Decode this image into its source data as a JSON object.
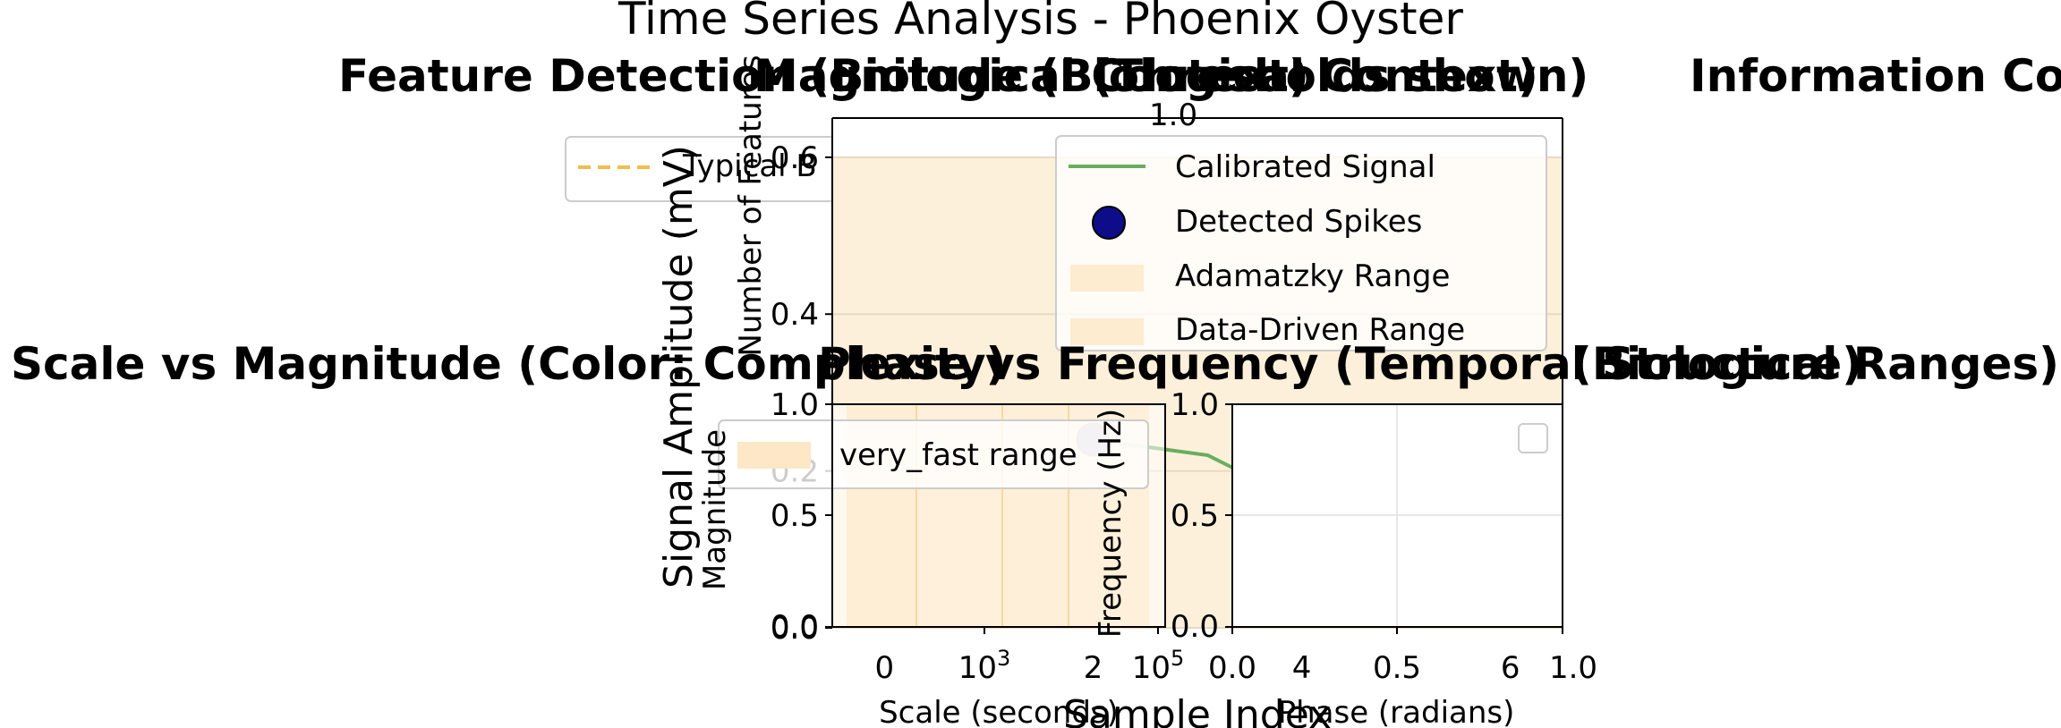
{
  "figure": {
    "suptitle": "Time Series Analysis - Phoenix Oyster"
  },
  "panels": {
    "feature_detection": {
      "title": "Feature Detection (Biological Context)",
      "legend": [
        "Typical B"
      ]
    },
    "magnitude": {
      "title": "Magnitude (Biological Context)",
      "ylabel": "Number of Features",
      "ytick": "1.0"
    },
    "histogram": {
      "title": "(Thresholds shown)",
      "ylabel": "Number of Features"
    },
    "main_signal": {
      "title": "Information Content)",
      "ylabel": "Signal Amplitude (mV)",
      "xlabel": "Sample Index"
    },
    "scale_vs_magnitude": {
      "title": "Scale vs Magnitude (Color: Complexity)",
      "ylabel": "Magnitude",
      "xlabel": "Scale (seconds)",
      "legend": [
        "very_fast range"
      ]
    },
    "phase_vs_frequency": {
      "title": "Phase vs Frequency (Temporal Structure)",
      "ylabel": "Frequency (Hz)",
      "xlabel": "Phase (radians)"
    },
    "biological_ranges": {
      "title": "(Biological Ranges)"
    }
  },
  "chart_data": [
    {
      "type": "line",
      "title": "Information Content)",
      "ylabel": "Signal Amplitude (mV)",
      "xlabel": "Sample Index",
      "yticks": [
        "0.0",
        "0.2",
        "0.4",
        "0.6"
      ],
      "ylim": [
        0.0,
        0.65
      ],
      "xticks": [
        "0",
        "2",
        "4",
        "6"
      ],
      "xlim": [
        -0.5,
        6.5
      ],
      "series": [
        {
          "name": "Calibrated Signal",
          "color": "#6aad5f",
          "x": [
            2.0,
            3.1,
            3.7
          ],
          "y": [
            0.24,
            0.22,
            0.18
          ]
        }
      ],
      "spikes": {
        "name": "Detected Spikes",
        "color": "#0d0d8a",
        "x": [
          2.0
        ],
        "y": [
          0.24
        ]
      },
      "ranges": [
        {
          "name": "Adamatzky Range",
          "color": "#fde7c6",
          "y": [
            0.0,
            0.6
          ]
        },
        {
          "name": "Data-Driven Range",
          "color": "#fde7c6",
          "y": [
            0.0,
            0.6
          ]
        }
      ],
      "legend_position": "upper right",
      "grid": true
    },
    {
      "type": "scatter",
      "title": "Scale vs Magnitude (Color: Complexity)",
      "ylabel": "Magnitude",
      "xlabel": "Scale (seconds)",
      "xscale": "log",
      "xticks": [
        "10^3",
        "10^5"
      ],
      "yticks": [
        "0.0",
        "0.5",
        "1.0"
      ],
      "ylim": [
        0.0,
        1.0
      ],
      "series": [],
      "legend": [
        "very_fast range"
      ],
      "grid": true
    },
    {
      "type": "scatter",
      "title": "Phase vs Frequency (Temporal Structure)",
      "ylabel": "Frequency (Hz)",
      "xlabel": "Phase (radians)",
      "xticks": [
        "0.0",
        "0.5",
        "1.0"
      ],
      "yticks": [
        "0.0",
        "0.5",
        "1.0"
      ],
      "xlim": [
        0.0,
        1.0
      ],
      "ylim": [
        0.0,
        1.0
      ],
      "series": [],
      "legend": [
        ""
      ],
      "grid": true
    }
  ]
}
